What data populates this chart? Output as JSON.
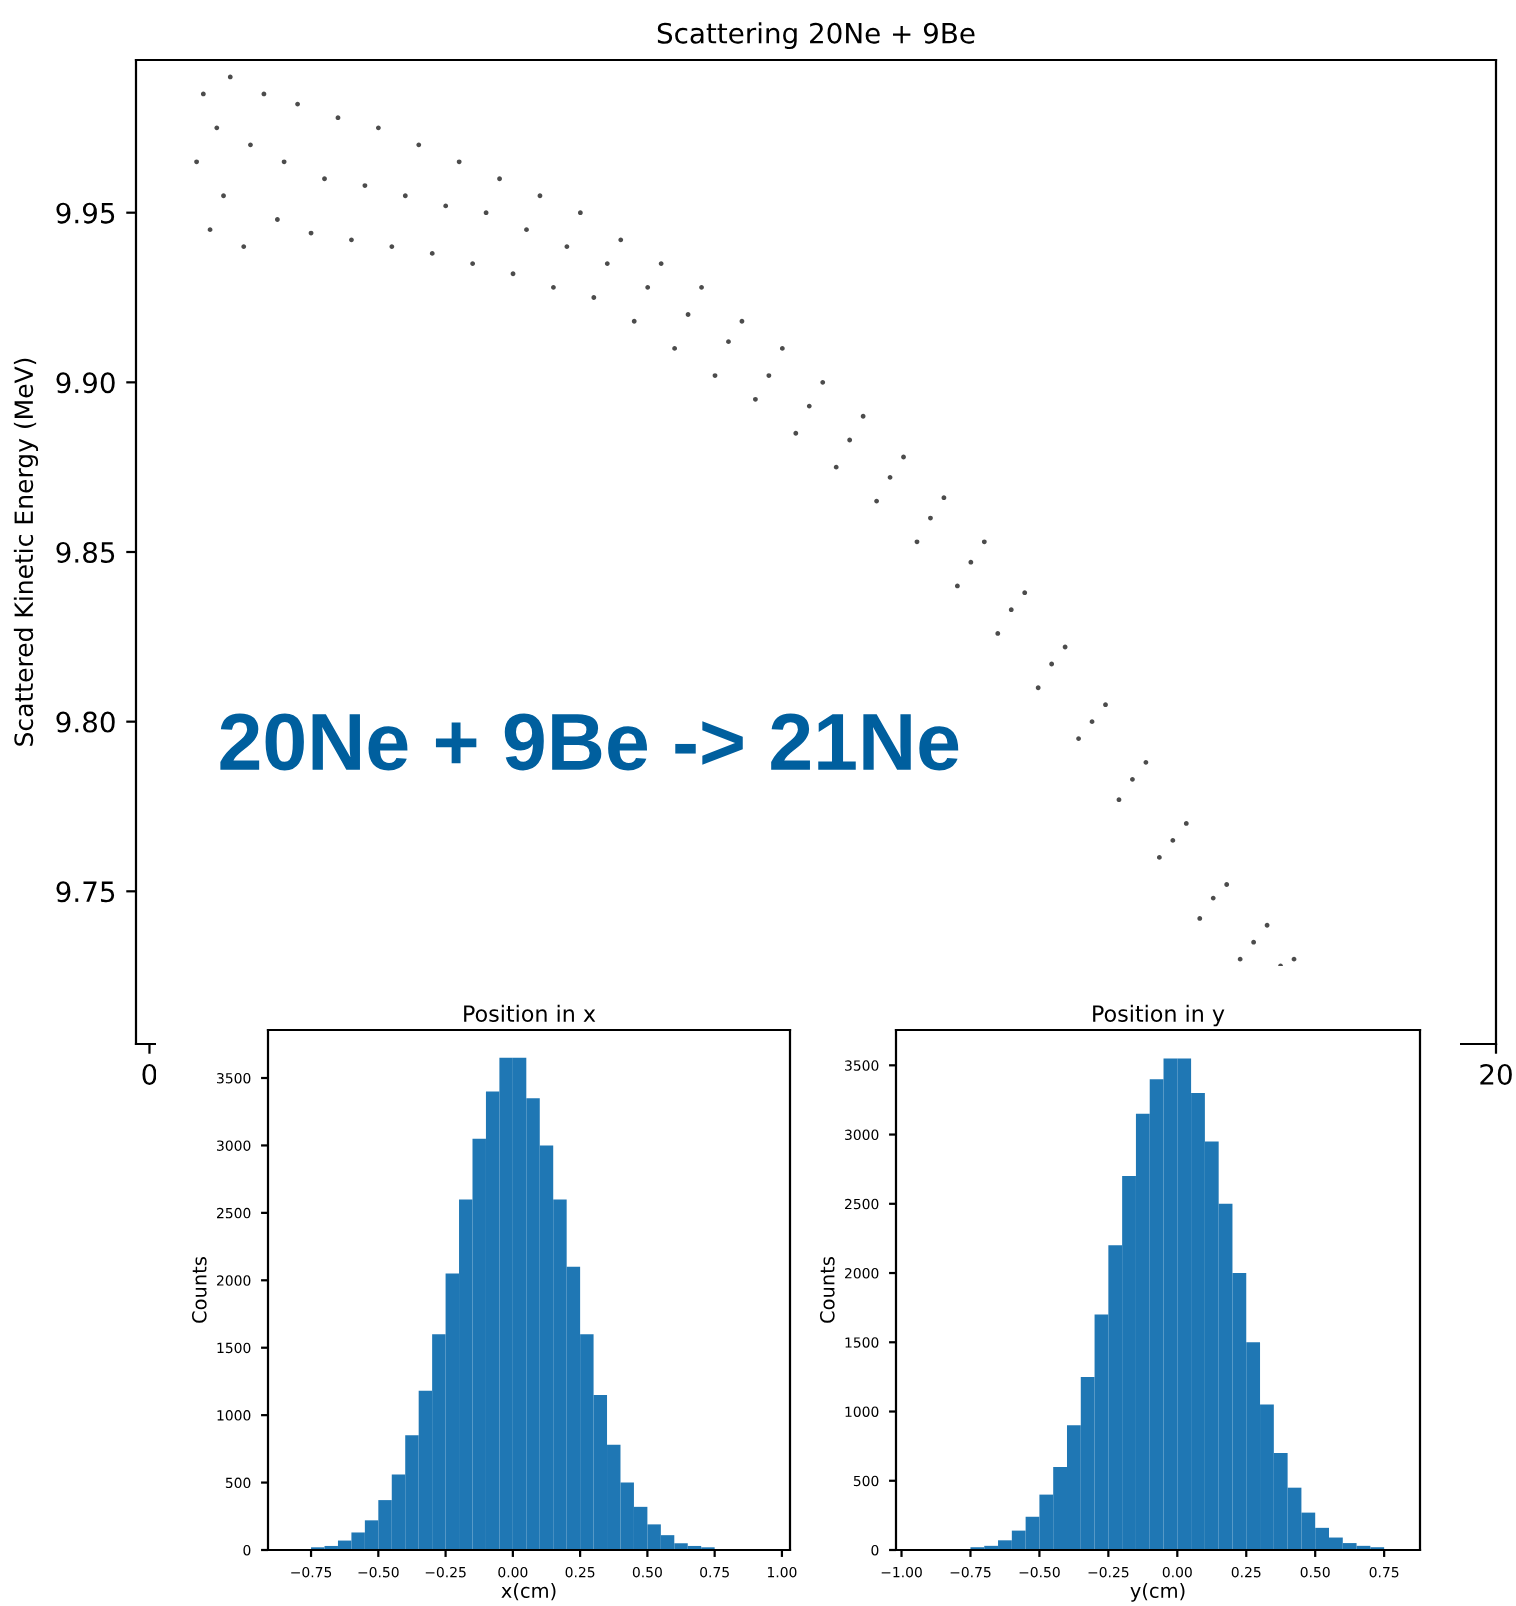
{
  "chart_data": [
    {
      "type": "scatter",
      "title": "Scattering 20Ne + 9Be",
      "ylabel": "Scattered Kinetic Energy (MeV)",
      "color": "#000000",
      "marker": "circle",
      "annotations": [
        "20Ne + 9Be -> 21Ne"
      ],
      "xlim": [
        -0.2,
        20
      ],
      "ylim": [
        9.705,
        9.995
      ],
      "xticks": [
        0,
        20
      ],
      "yticks": [
        9.75,
        {
          "value": 9.8,
          "label": "9.80"
        },
        9.85,
        {
          "value": 9.9,
          "label": "9.90"
        },
        9.95
      ],
      "x": [
        0.7,
        0.8,
        0.9,
        1.0,
        1.1,
        1.2,
        1.4,
        1.5,
        1.7,
        1.9,
        2.0,
        2.2,
        2.4,
        2.6,
        2.8,
        3.0,
        3.2,
        3.4,
        3.6,
        3.8,
        4.0,
        4.2,
        4.4,
        4.6,
        4.8,
        5.0,
        5.2,
        5.4,
        5.6,
        5.8,
        6.0,
        6.2,
        6.4,
        6.6,
        6.8,
        7.0,
        7.2,
        7.4,
        7.6,
        7.8,
        8.0,
        8.2,
        8.4,
        8.6,
        8.8,
        9.0,
        9.2,
        9.4,
        9.6,
        9.8,
        10.0,
        10.2,
        10.4,
        10.6,
        10.8,
        11.0,
        11.2,
        11.4,
        11.6,
        11.8,
        12.0,
        12.2,
        12.4,
        12.6,
        12.8,
        13.0,
        13.2,
        13.4,
        13.6,
        13.8,
        14.0,
        14.2,
        14.4,
        14.6,
        14.8,
        15.0,
        15.2,
        15.4,
        15.6,
        15.8,
        16.0,
        16.2,
        16.4,
        16.6,
        16.8,
        17.0
      ],
      "values": [
        9.965,
        9.985,
        9.945,
        9.975,
        9.955,
        9.99,
        9.94,
        9.97,
        9.985,
        9.948,
        9.965,
        9.982,
        9.944,
        9.96,
        9.978,
        9.942,
        9.958,
        9.975,
        9.94,
        9.955,
        9.97,
        9.938,
        9.952,
        9.965,
        9.935,
        9.95,
        9.96,
        9.932,
        9.945,
        9.955,
        9.928,
        9.94,
        9.95,
        9.925,
        9.935,
        9.942,
        9.918,
        9.928,
        9.935,
        9.91,
        9.92,
        9.928,
        9.902,
        9.912,
        9.918,
        9.895,
        9.902,
        9.91,
        9.885,
        9.893,
        9.9,
        9.875,
        9.883,
        9.89,
        9.865,
        9.872,
        9.878,
        9.853,
        9.86,
        9.866,
        9.84,
        9.847,
        9.853,
        9.826,
        9.833,
        9.838,
        9.81,
        9.817,
        9.822,
        9.795,
        9.8,
        9.805,
        9.777,
        9.783,
        9.788,
        9.76,
        9.765,
        9.77,
        9.742,
        9.748,
        9.752,
        9.73,
        9.735,
        9.74,
        9.728,
        9.73
      ]
    },
    {
      "type": "histogram",
      "title": "Position in x",
      "xlabel": "x(cm)",
      "ylabel": "Counts",
      "color": "#1f77b4",
      "xlim": [
        -0.91,
        1.03
      ],
      "ylim": [
        0,
        3856
      ],
      "xticks": [
        {
          "value": -0.75,
          "label": "−0.75"
        },
        {
          "value": -0.5,
          "label": "−0.50"
        },
        {
          "value": -0.25,
          "label": "−0.25"
        },
        {
          "value": 0,
          "label": "0.00"
        },
        {
          "value": 0.25,
          "label": "0.25"
        },
        {
          "value": 0.5,
          "label": "0.50"
        },
        {
          "value": 0.75,
          "label": "0.75"
        },
        {
          "value": 1.0,
          "label": "1.00"
        }
      ],
      "yticks": [
        0,
        500,
        1000,
        1500,
        2000,
        2500,
        3000,
        3500
      ],
      "bins": [
        -0.75,
        -0.7,
        -0.65,
        -0.6,
        -0.55,
        -0.5,
        -0.45,
        -0.4,
        -0.35,
        -0.3,
        -0.25,
        -0.2,
        -0.15,
        -0.1,
        -0.05,
        0.0,
        0.05,
        0.1,
        0.15,
        0.2,
        0.25,
        0.3,
        0.35,
        0.4,
        0.45,
        0.5,
        0.55,
        0.6,
        0.65,
        0.7,
        0.75
      ],
      "values": [
        20,
        30,
        70,
        130,
        220,
        370,
        560,
        850,
        1180,
        1600,
        2050,
        2600,
        3050,
        3400,
        3650,
        3650,
        3350,
        3000,
        2600,
        2100,
        1600,
        1150,
        780,
        500,
        320,
        190,
        110,
        50,
        30,
        20
      ]
    },
    {
      "type": "histogram",
      "title": "Position in y",
      "xlabel": "y(cm)",
      "ylabel": "Counts",
      "color": "#1f77b4",
      "xlim": [
        -1.02,
        0.88
      ],
      "ylim": [
        0,
        3755
      ],
      "xticks": [
        {
          "value": -1.0,
          "label": "−1.00"
        },
        {
          "value": -0.75,
          "label": "−0.75"
        },
        {
          "value": -0.5,
          "label": "−0.50"
        },
        {
          "value": -0.25,
          "label": "−0.25"
        },
        {
          "value": 0,
          "label": "0.00"
        },
        {
          "value": 0.25,
          "label": "0.25"
        },
        {
          "value": 0.5,
          "label": "0.50"
        },
        {
          "value": 0.75,
          "label": "0.75"
        }
      ],
      "yticks": [
        0,
        500,
        1000,
        1500,
        2000,
        2500,
        3000,
        3500
      ],
      "bins": [
        -0.75,
        -0.7,
        -0.65,
        -0.6,
        -0.55,
        -0.5,
        -0.45,
        -0.4,
        -0.35,
        -0.3,
        -0.25,
        -0.2,
        -0.15,
        -0.1,
        -0.05,
        0.0,
        0.05,
        0.1,
        0.15,
        0.2,
        0.25,
        0.3,
        0.35,
        0.4,
        0.45,
        0.5,
        0.55,
        0.6,
        0.65,
        0.7,
        0.75
      ],
      "values": [
        20,
        30,
        70,
        140,
        240,
        400,
        600,
        900,
        1250,
        1700,
        2200,
        2700,
        3150,
        3400,
        3550,
        3550,
        3300,
        2950,
        2500,
        2000,
        1500,
        1050,
        700,
        450,
        270,
        160,
        90,
        50,
        30,
        20
      ]
    }
  ]
}
